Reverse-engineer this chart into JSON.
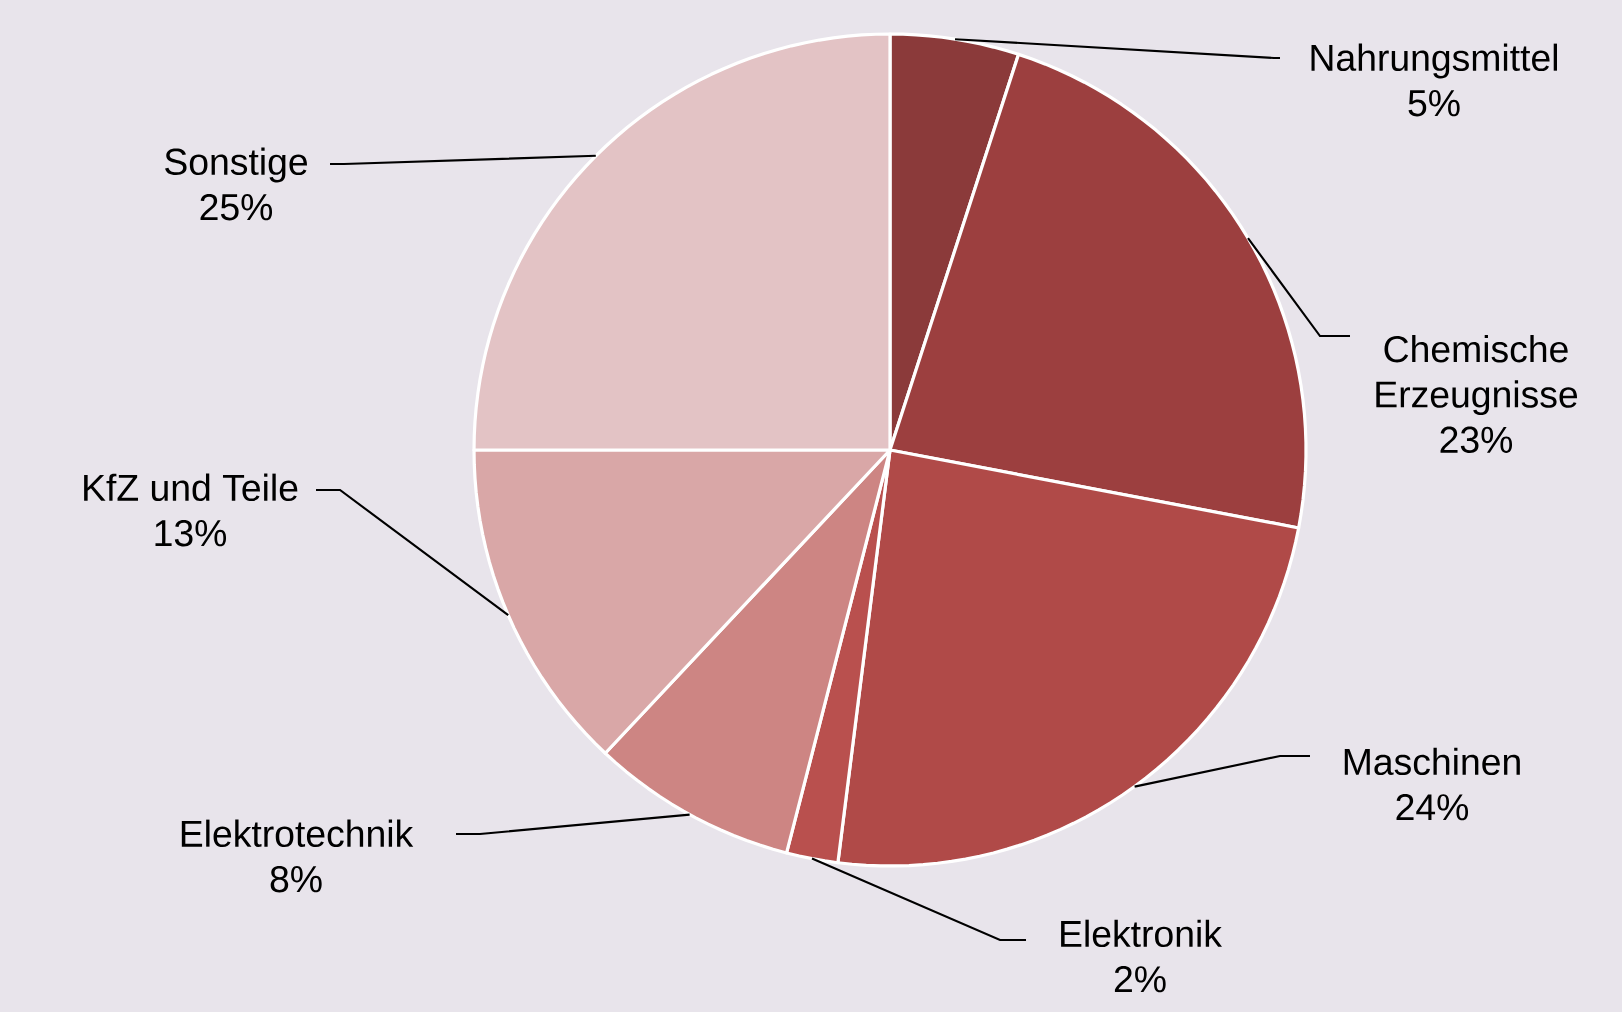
{
  "chart_data": {
    "type": "pie",
    "categories": [
      "Nahrungsmittel",
      "Chemische Erzeugnisse",
      "Maschinen",
      "Elektronik",
      "Elektrotechnik",
      "KfZ und Teile",
      "Sonstige"
    ],
    "values": [
      5,
      23,
      24,
      2,
      8,
      13,
      25
    ],
    "value_labels": [
      "5%",
      "23%",
      "24%",
      "2%",
      "8%",
      "13%",
      "25%"
    ],
    "colors": [
      "#8b3a3a",
      "#9c3f3f",
      "#b04a48",
      "#b9504e",
      "#cd8583",
      "#d9a7a7",
      "#e3c3c5"
    ]
  }
}
